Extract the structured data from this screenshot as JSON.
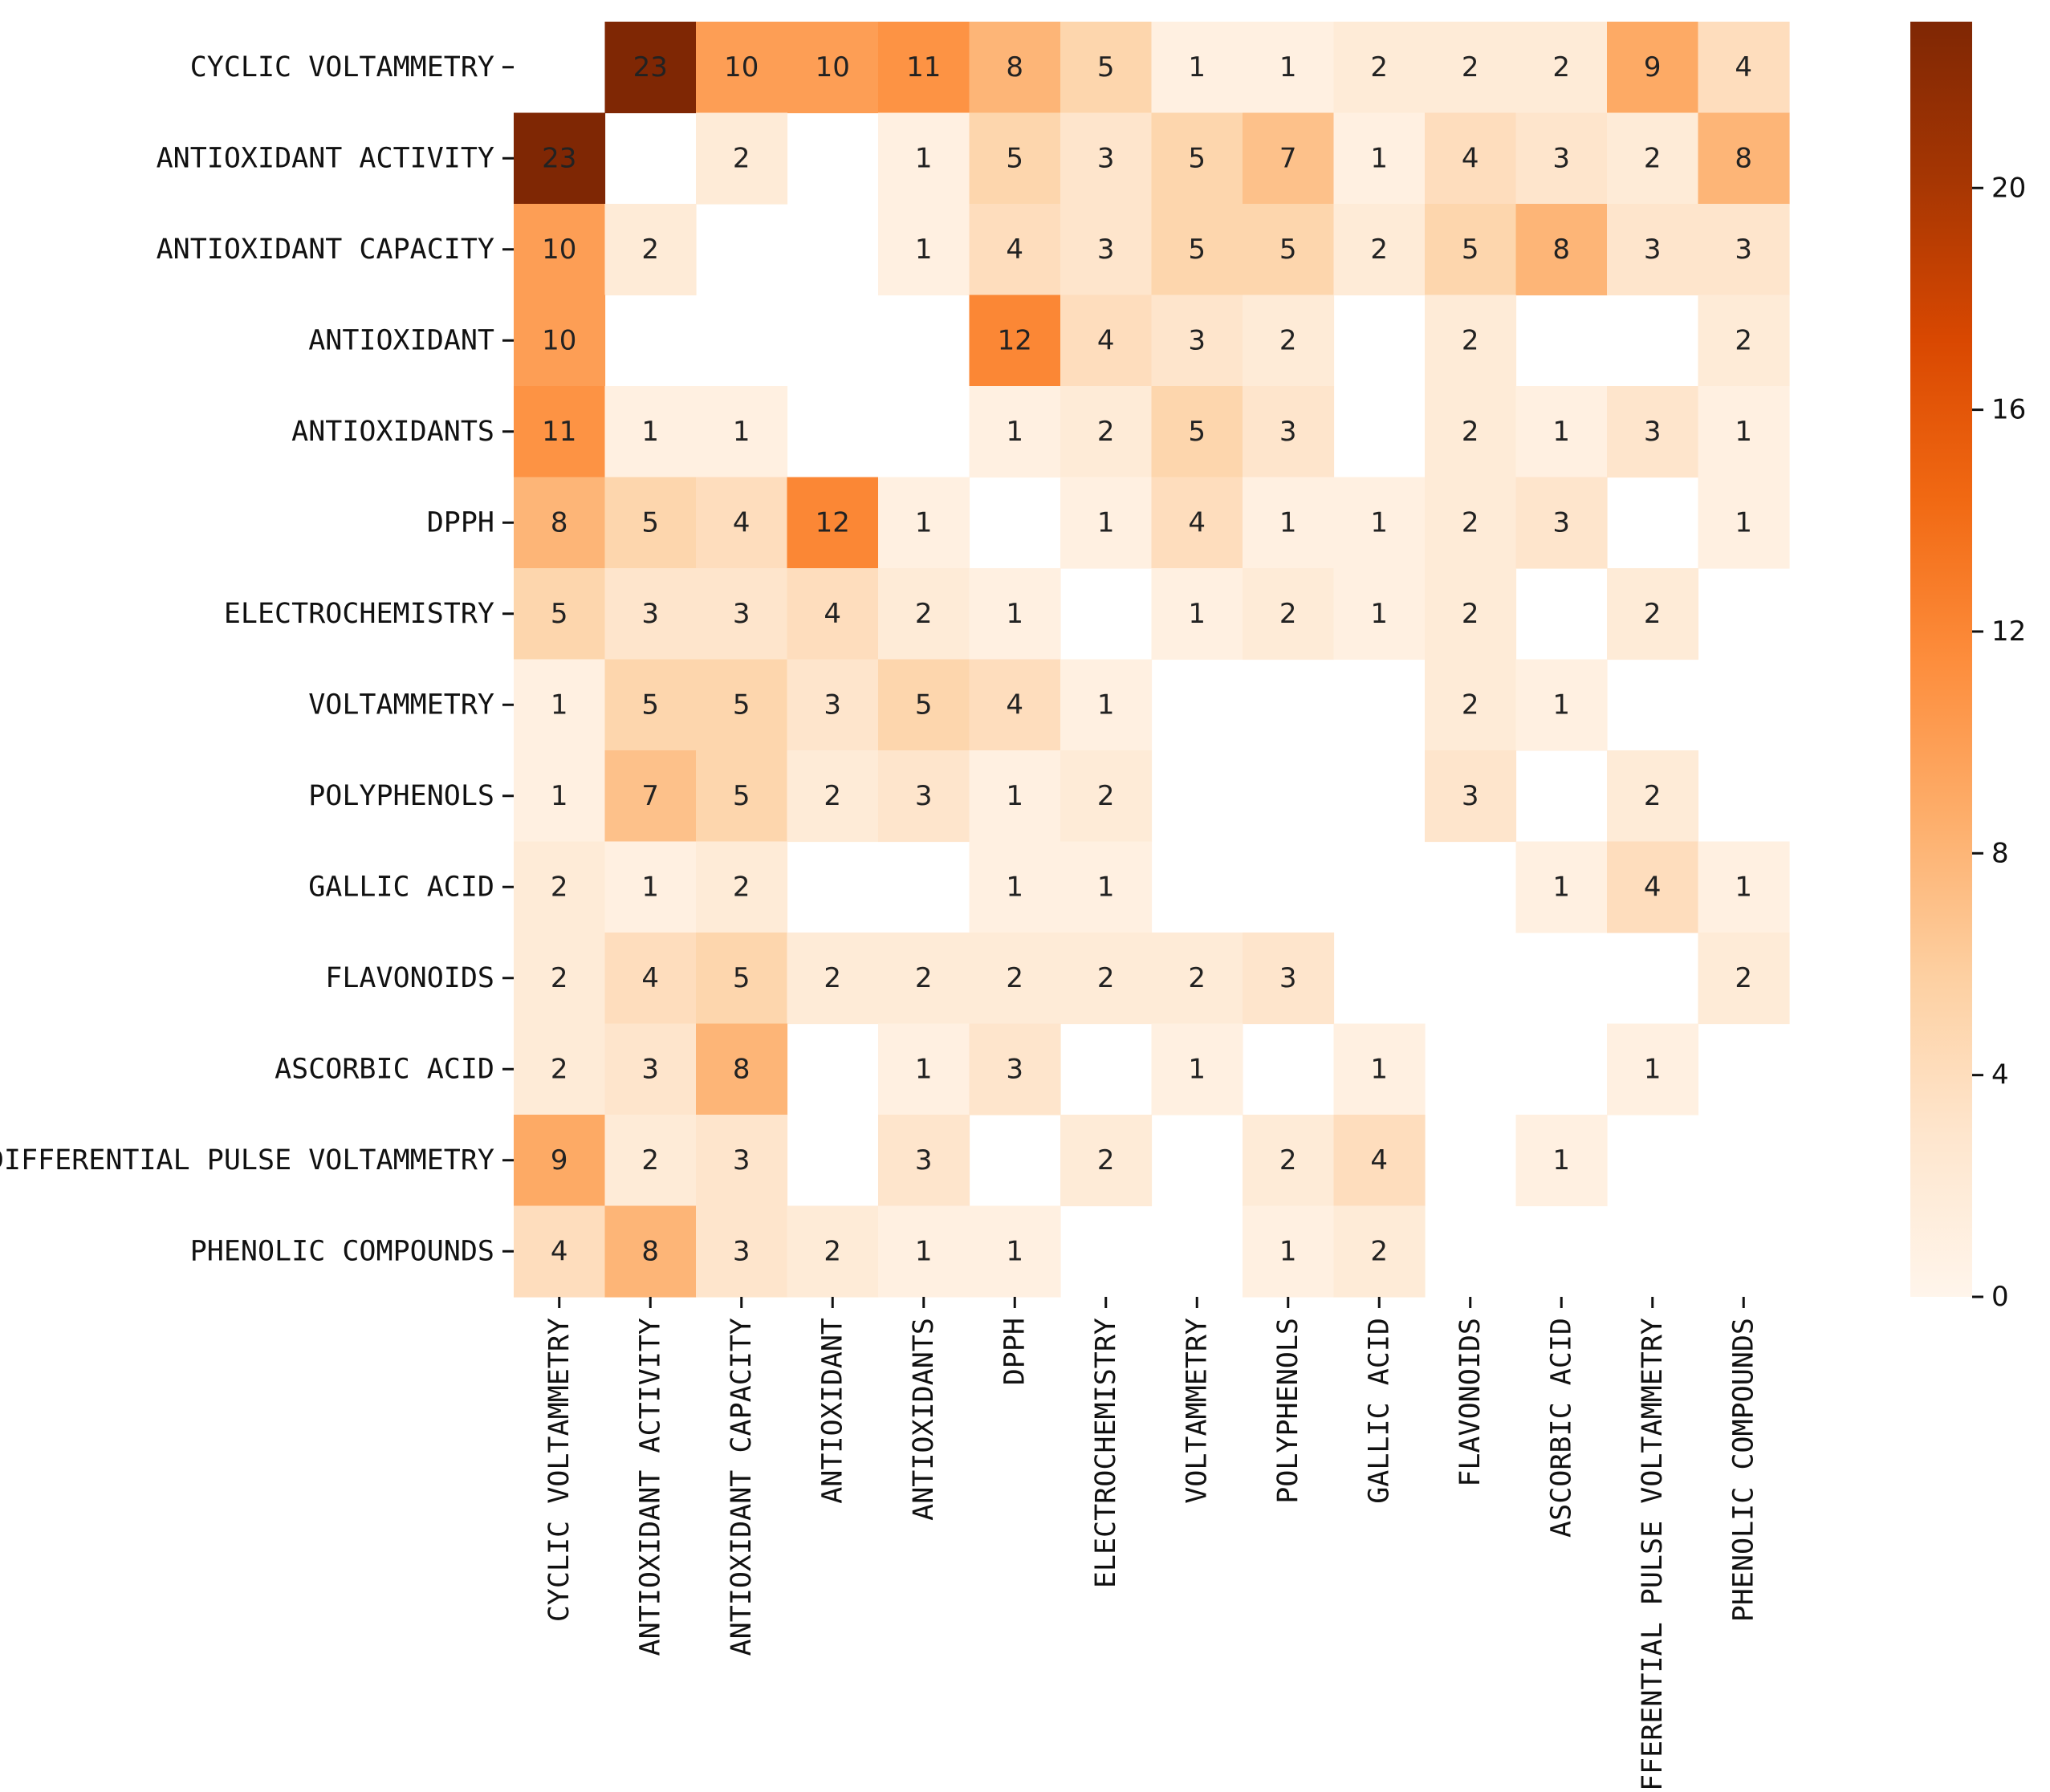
{
  "chart_data": {
    "type": "heatmap",
    "title": "",
    "xlabel": "",
    "ylabel": "",
    "rows": [
      "CYCLIC VOLTAMMETRY",
      "ANTIOXIDANT ACTIVITY",
      "ANTIOXIDANT CAPACITY",
      "ANTIOXIDANT",
      "ANTIOXIDANTS",
      "DPPH",
      "ELECTROCHEMISTRY",
      "VOLTAMMETRY",
      "POLYPHENOLS",
      "GALLIC ACID",
      "FLAVONOIDS",
      "ASCORBIC ACID",
      "DIFFERENTIAL PULSE VOLTAMMETRY",
      "PHENOLIC COMPOUNDS"
    ],
    "columns": [
      "CYCLIC VOLTAMMETRY",
      "ANTIOXIDANT ACTIVITY",
      "ANTIOXIDANT CAPACITY",
      "ANTIOXIDANT",
      "ANTIOXIDANTS",
      "DPPH",
      "ELECTROCHEMISTRY",
      "VOLTAMMETRY",
      "POLYPHENOLS",
      "GALLIC ACID",
      "FLAVONOIDS",
      "ASCORBIC ACID",
      "DIFFERENTIAL PULSE VOLTAMMETRY",
      "PHENOLIC COMPOUNDS"
    ],
    "values": [
      [
        null,
        23,
        10,
        10,
        11,
        8,
        5,
        1,
        1,
        2,
        2,
        2,
        9,
        4
      ],
      [
        23,
        null,
        2,
        null,
        1,
        5,
        3,
        5,
        7,
        1,
        4,
        3,
        2,
        8
      ],
      [
        10,
        2,
        null,
        null,
        1,
        4,
        3,
        5,
        5,
        2,
        5,
        8,
        3,
        3
      ],
      [
        10,
        null,
        null,
        null,
        null,
        12,
        4,
        3,
        2,
        null,
        2,
        null,
        null,
        2
      ],
      [
        11,
        1,
        1,
        null,
        null,
        1,
        2,
        5,
        3,
        null,
        2,
        1,
        3,
        1
      ],
      [
        8,
        5,
        4,
        12,
        1,
        null,
        1,
        4,
        1,
        1,
        2,
        3,
        null,
        1
      ],
      [
        5,
        3,
        3,
        4,
        2,
        1,
        null,
        1,
        2,
        1,
        2,
        null,
        2,
        null
      ],
      [
        1,
        5,
        5,
        3,
        5,
        4,
        1,
        null,
        null,
        null,
        2,
        1,
        null,
        null
      ],
      [
        1,
        7,
        5,
        2,
        3,
        1,
        2,
        null,
        null,
        null,
        3,
        null,
        2,
        null
      ],
      [
        2,
        1,
        2,
        null,
        null,
        1,
        1,
        null,
        null,
        null,
        null,
        1,
        4,
        1
      ],
      [
        2,
        4,
        5,
        2,
        2,
        2,
        2,
        2,
        3,
        null,
        null,
        null,
        null,
        2
      ],
      [
        2,
        3,
        8,
        null,
        1,
        3,
        null,
        1,
        null,
        1,
        null,
        null,
        1,
        null
      ],
      [
        9,
        2,
        3,
        null,
        3,
        null,
        2,
        null,
        2,
        4,
        null,
        1,
        null,
        null
      ],
      [
        4,
        8,
        3,
        2,
        1,
        1,
        null,
        null,
        1,
        2,
        null,
        null,
        null,
        null
      ]
    ],
    "colormap": "Oranges",
    "vmin": 0,
    "vmax": 23,
    "colorbar_ticks": [
      0,
      4,
      8,
      12,
      16,
      20
    ],
    "colorbar_tick_labels": [
      "0",
      "4",
      "8",
      "12",
      "16",
      "20"
    ],
    "colors": {
      "low": "#fff5eb",
      "high": "#7f2704",
      "text_dark": "#222222",
      "text_light": "#ffffff"
    }
  }
}
